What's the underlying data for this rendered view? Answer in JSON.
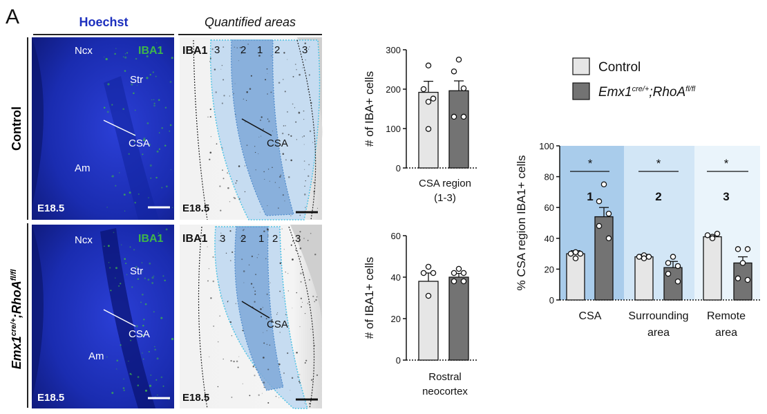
{
  "panel_letter": "A",
  "micro": {
    "col1_header": "Hoechst",
    "col2_header": "Quantified areas",
    "row_labels": [
      "Control",
      "Emx1",
      "cre/+",
      ";RhoA",
      "fl/fl"
    ],
    "stain": "IBA1",
    "stage": "E18.5",
    "regions": {
      "ncx": "Ncx",
      "str": "Str",
      "am": "Am",
      "csa": "CSA"
    },
    "zone_numbers": [
      "3",
      "2",
      "1",
      "2",
      "3"
    ]
  },
  "legend": {
    "control": "Control",
    "mutant_a": "Emx1",
    "mutant_sup1": "cre/+",
    "mutant_b": ";RhoA",
    "mutant_sup2": "fl/fl"
  },
  "colors": {
    "control": "#e6e6e6",
    "mutant": "#737373",
    "bg1": "#a9cceb",
    "bg2": "#d2e6f6",
    "bg3": "#eaf4fb",
    "hoechst": "#1c2fbe",
    "iba1": "#3fb64a"
  },
  "chart_data": [
    {
      "type": "bar",
      "ylabel": "# of IBA+ cells",
      "categories": [
        "CSA region (1-3)"
      ],
      "category_lines": [
        "CSA region",
        "(1-3)"
      ],
      "ylim": [
        0,
        300
      ],
      "yticks": [
        "0",
        "100",
        "200",
        "300"
      ],
      "series": [
        {
          "name": "Control",
          "values": [
            192
          ],
          "sem": [
            28
          ],
          "points": [
            [
              168,
              0
            ],
            [
              200,
              -1
            ],
            [
              176,
              1
            ],
            [
              99,
              0
            ],
            [
              260,
              0
            ]
          ]
        },
        {
          "name": "Emx1cre/+;RhoAfl/fl",
          "values": [
            196
          ],
          "sem": [
            25
          ],
          "points": [
            [
              275,
              0
            ],
            [
              245,
              -1
            ],
            [
              202,
              1
            ],
            [
              130,
              -1
            ],
            [
              130,
              1
            ]
          ]
        }
      ]
    },
    {
      "type": "bar",
      "ylabel": "# of IBA1+ cells",
      "categories": [
        "Rostral neocortex"
      ],
      "category_lines": [
        "Rostral",
        "neocortex"
      ],
      "ylim": [
        0,
        60
      ],
      "yticks": [
        "0",
        "20",
        "40",
        "60"
      ],
      "series": [
        {
          "name": "Control",
          "values": [
            38
          ],
          "sem": [
            4
          ],
          "points": [
            [
              45,
              0
            ],
            [
              42,
              -1
            ],
            [
              42,
              1
            ],
            [
              31,
              0
            ]
          ]
        },
        {
          "name": "Emx1cre/+;RhoAfl/fl",
          "values": [
            40
          ],
          "sem": [
            1.8
          ],
          "points": [
            [
              44,
              0
            ],
            [
              42,
              -1
            ],
            [
              42,
              1
            ],
            [
              38,
              -1
            ],
            [
              38,
              1
            ]
          ]
        }
      ]
    },
    {
      "type": "bar",
      "ylabel": "% CSA region IBA1+ cells",
      "categories": [
        "CSA",
        "Surrounding area",
        "Remote area"
      ],
      "category_lines": [
        [
          "CSA"
        ],
        [
          "Surrounding",
          "area"
        ],
        [
          "Remote",
          "area"
        ]
      ],
      "region_numbers": [
        "1",
        "2",
        "3"
      ],
      "significance": [
        "*",
        "*",
        "*"
      ],
      "ylim": [
        0,
        100
      ],
      "yticks": [
        "0",
        "20",
        "40",
        "60",
        "80",
        "100"
      ],
      "series": [
        {
          "name": "Control",
          "values": [
            30,
            28,
            41
          ],
          "sem": [
            2,
            1.5,
            1
          ],
          "points": [
            [
              [
                31,
                0
              ],
              [
                30,
                -1
              ],
              [
                30,
                1
              ],
              [
                27,
                0
              ]
            ],
            [
              [
                29,
                0
              ],
              [
                28,
                -1
              ],
              [
                28,
                1
              ],
              [
                27,
                0
              ]
            ],
            [
              [
                43,
                1
              ],
              [
                42,
                -1
              ],
              [
                41,
                0
              ],
              [
                40,
                0
              ]
            ]
          ]
        },
        {
          "name": "Emx1cre/+;RhoAfl/fl",
          "values": [
            54,
            21,
            24
          ],
          "sem": [
            6,
            4,
            4
          ],
          "points": [
            [
              [
                75,
                0
              ],
              [
                64,
                -1
              ],
              [
                56,
                1
              ],
              [
                48,
                -1
              ],
              [
                40,
                1
              ]
            ],
            [
              [
                28,
                0
              ],
              [
                24,
                -1
              ],
              [
                22,
                1
              ],
              [
                17,
                -1
              ],
              [
                12,
                1
              ]
            ],
            [
              [
                33,
                -1
              ],
              [
                33,
                1
              ],
              [
                24,
                0
              ],
              [
                14,
                -1
              ],
              [
                13,
                1
              ]
            ]
          ]
        }
      ]
    }
  ]
}
